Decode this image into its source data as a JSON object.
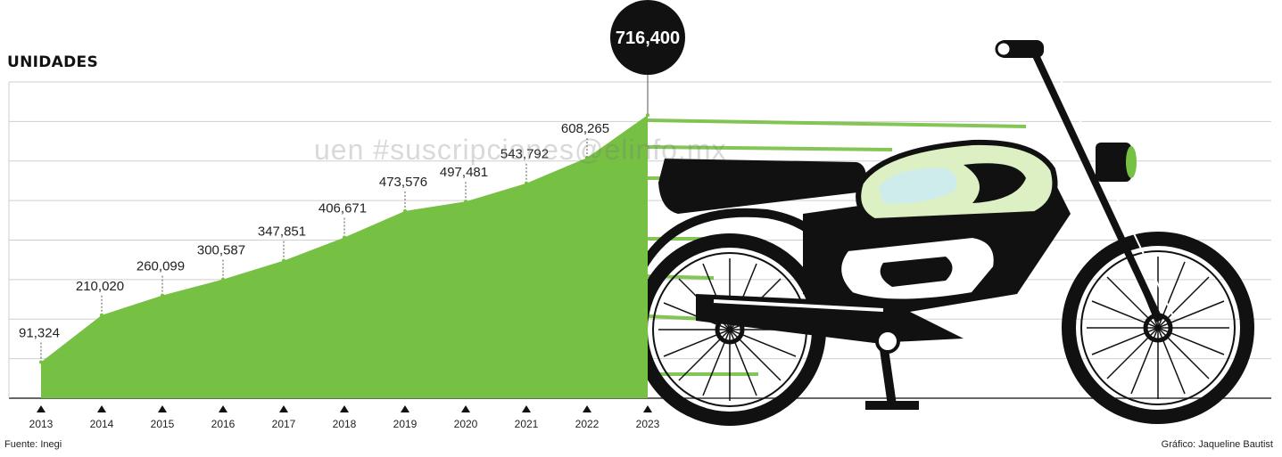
{
  "header": {
    "ylabel": "UNIDADES"
  },
  "footer": {
    "source": "Fuente: Inegi",
    "credit": "Gráfico: Jaqueline Bautist"
  },
  "watermark": "uen #suscripciones@elinfo.mx",
  "colors": {
    "fill": "#76C043",
    "highlight": "#111111",
    "grid": "#cfcfcf",
    "text": "#222222"
  },
  "icons": [
    "motorcycle-illustration"
  ],
  "chart_data": {
    "type": "area",
    "title": "",
    "xlabel": "",
    "ylabel": "UNIDADES",
    "x": [
      "2013",
      "2014",
      "2015",
      "2016",
      "2017",
      "2018",
      "2019",
      "2020",
      "2021",
      "2022",
      "2023"
    ],
    "series": [
      {
        "values": [
          91324,
          210020,
          260099,
          300587,
          347851,
          406671,
          473576,
          497481,
          543792,
          608265,
          716400
        ],
        "labels": [
          "91,324",
          "210,020",
          "260,099",
          "300,587",
          "347,851",
          "406,671",
          "473,576",
          "497,481",
          "543,792",
          "608,265",
          "716,400"
        ]
      }
    ],
    "ylim": [
      0,
      800000
    ],
    "grid": true,
    "highlight": "2023"
  }
}
